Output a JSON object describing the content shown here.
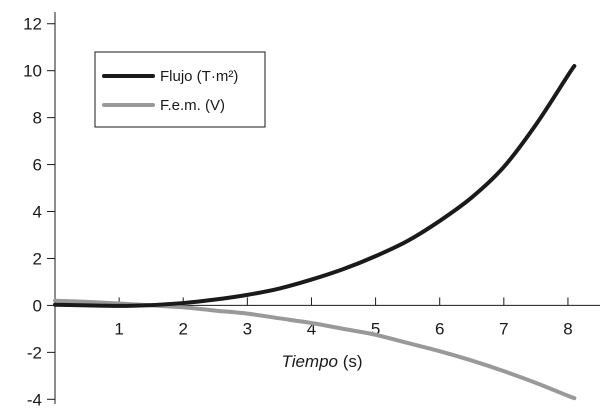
{
  "chart_data": {
    "type": "line",
    "xlabel": {
      "italic": "Tiempo",
      "rest": " (s)"
    },
    "ylabel": "",
    "xlim": [
      0,
      8.5
    ],
    "ylim": [
      -4.2,
      12.5
    ],
    "x_ticks": [
      1,
      2,
      3,
      4,
      5,
      6,
      7,
      8
    ],
    "y_ticks": [
      -4,
      -2,
      0,
      2,
      4,
      6,
      8,
      10,
      12
    ],
    "grid": false,
    "legend_position": "top-left",
    "series": [
      {
        "name": "Flujo (T·m²)",
        "color": "#1a1a1a",
        "x": [
          0,
          0.5,
          1,
          1.4,
          2,
          2.5,
          3,
          3.5,
          4,
          4.5,
          5,
          5.5,
          6,
          6.5,
          7,
          7.5,
          8,
          8.1
        ],
        "y": [
          0.03,
          0.0,
          -0.02,
          0.0,
          0.1,
          0.25,
          0.45,
          0.72,
          1.1,
          1.55,
          2.1,
          2.75,
          3.6,
          4.6,
          5.9,
          7.7,
          9.8,
          10.2
        ]
      },
      {
        "name": "F.e.m. (V)",
        "color": "#999999",
        "x": [
          0,
          0.5,
          1,
          1.5,
          2,
          2.5,
          3,
          3.5,
          4,
          4.5,
          5,
          5.5,
          6,
          6.5,
          7,
          7.5,
          8,
          8.1
        ],
        "y": [
          0.2,
          0.15,
          0.08,
          0.0,
          -0.08,
          -0.22,
          -0.35,
          -0.55,
          -0.75,
          -1.0,
          -1.25,
          -1.6,
          -1.95,
          -2.35,
          -2.8,
          -3.3,
          -3.85,
          -3.95
        ]
      }
    ]
  }
}
